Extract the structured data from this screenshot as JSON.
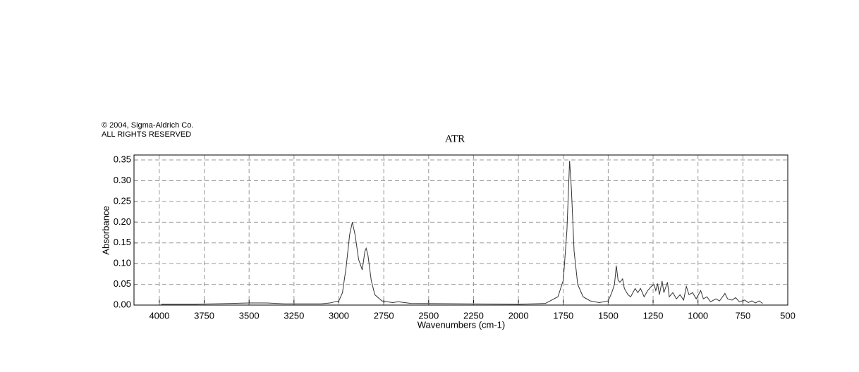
{
  "copyright": [
    "© 2004, Sigma-Aldrich Co.",
    "ALL RIGHTS RESERVED"
  ],
  "chart_data": {
    "type": "line",
    "title": "ATR",
    "x_label": "Wavenumbers (cm-1)",
    "y_label": "Absorbance",
    "xlim": [
      4141,
      500
    ],
    "ylim": [
      0,
      0.362
    ],
    "xticks": [
      4000,
      3750,
      3500,
      3250,
      3000,
      2750,
      2500,
      2250,
      2000,
      1750,
      1500,
      1250,
      1000,
      750,
      500
    ],
    "yticks": [
      {
        "value": 0,
        "label": "0.00"
      },
      0.05,
      {
        "value": 0.1,
        "label": "0.10"
      },
      0.15,
      {
        "value": 0.2,
        "label": "0.20"
      },
      0.25,
      {
        "value": 0.3,
        "label": "0.30"
      },
      0.35
    ],
    "grid": true,
    "series": [
      {
        "color": "#333333",
        "x": [
          3990,
          3800,
          3600,
          3500,
          3400,
          3300,
          3100,
          3050,
          3000,
          2980,
          2960,
          2940,
          2925,
          2910,
          2890,
          2870,
          2855,
          2848,
          2838,
          2820,
          2800,
          2760,
          2700,
          2670,
          2600,
          2300,
          2000,
          1850,
          1780,
          1750,
          1730,
          1715,
          1705,
          1690,
          1670,
          1640,
          1600,
          1550,
          1500,
          1480,
          1465,
          1455,
          1445,
          1435,
          1420,
          1410,
          1390,
          1375,
          1350,
          1335,
          1320,
          1300,
          1280,
          1260,
          1245,
          1235,
          1225,
          1215,
          1200,
          1190,
          1170,
          1160,
          1140,
          1120,
          1100,
          1080,
          1065,
          1050,
          1030,
          1010,
          985,
          970,
          950,
          930,
          900,
          880,
          850,
          835,
          810,
          790,
          770,
          740,
          720,
          700,
          680,
          660,
          640
        ],
        "values": [
          0.002,
          0.002,
          0.004,
          0.005,
          0.005,
          0.003,
          0.003,
          0.005,
          0.01,
          0.03,
          0.09,
          0.17,
          0.2,
          0.17,
          0.11,
          0.085,
          0.13,
          0.137,
          0.12,
          0.06,
          0.025,
          0.01,
          0.006,
          0.008,
          0.004,
          0.003,
          0.002,
          0.004,
          0.02,
          0.06,
          0.18,
          0.348,
          0.28,
          0.13,
          0.05,
          0.02,
          0.01,
          0.006,
          0.01,
          0.03,
          0.05,
          0.095,
          0.06,
          0.055,
          0.063,
          0.04,
          0.025,
          0.02,
          0.04,
          0.03,
          0.04,
          0.02,
          0.035,
          0.045,
          0.05,
          0.035,
          0.052,
          0.025,
          0.058,
          0.03,
          0.055,
          0.02,
          0.03,
          0.015,
          0.025,
          0.012,
          0.045,
          0.025,
          0.03,
          0.015,
          0.035,
          0.015,
          0.02,
          0.008,
          0.015,
          0.01,
          0.028,
          0.015,
          0.012,
          0.018,
          0.008,
          0.012,
          0.006,
          0.01,
          0.005,
          0.01,
          0.004
        ]
      }
    ]
  }
}
